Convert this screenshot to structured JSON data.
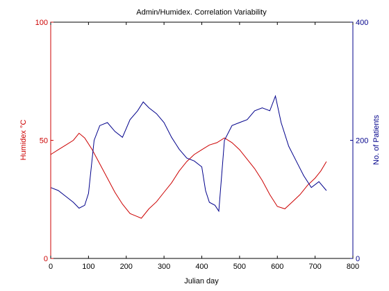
{
  "chart_data": {
    "type": "line",
    "title": "Admin/Humidex. Correlation Variability",
    "xlabel": "Julian day",
    "ylabel_left": "Humidex °C",
    "ylabel_right": "No. of Patients",
    "xlim": [
      0,
      800
    ],
    "ylim_left": [
      0,
      100
    ],
    "ylim_right": [
      0,
      400
    ],
    "xticks": [
      "0",
      "100",
      "200",
      "300",
      "400",
      "500",
      "600",
      "700",
      "800"
    ],
    "yticks_left": [
      "0",
      "50",
      "100"
    ],
    "yticks_right": [
      "0",
      "200",
      "400"
    ],
    "grid": false,
    "colors": {
      "humidex": "#cc0000",
      "patients": "#00008b",
      "axis": "#000000"
    },
    "series": [
      {
        "axis": "left",
        "color": "#cc0000",
        "x": [
          0,
          20,
          40,
          60,
          75,
          90,
          110,
          130,
          150,
          170,
          190,
          210,
          225,
          240,
          260,
          280,
          300,
          320,
          340,
          360,
          380,
          400,
          420,
          440,
          460,
          480,
          500,
          520,
          540,
          560,
          580,
          600,
          620,
          640,
          660,
          680,
          700,
          715,
          730
        ],
        "y": [
          44,
          46,
          48,
          50,
          53,
          51,
          46,
          40,
          34,
          28,
          23,
          19,
          18,
          17,
          21,
          24,
          28,
          32,
          37,
          41,
          44,
          46,
          48,
          49,
          51,
          49,
          46,
          42,
          38,
          33,
          27,
          22,
          21,
          24,
          27,
          31,
          34,
          37,
          41
        ]
      },
      {
        "axis": "right",
        "color": "#00008b",
        "x": [
          0,
          20,
          40,
          60,
          75,
          90,
          100,
          115,
          130,
          150,
          170,
          190,
          210,
          230,
          245,
          260,
          280,
          300,
          320,
          340,
          360,
          380,
          400,
          410,
          420,
          435,
          445,
          460,
          480,
          500,
          520,
          540,
          560,
          580,
          595,
          610,
          630,
          650,
          670,
          690,
          710,
          730
        ],
        "y": [
          120,
          115,
          105,
          95,
          85,
          90,
          110,
          200,
          225,
          230,
          215,
          205,
          235,
          250,
          265,
          255,
          245,
          230,
          205,
          185,
          170,
          165,
          155,
          115,
          95,
          90,
          80,
          200,
          225,
          230,
          235,
          250,
          255,
          250,
          275,
          230,
          190,
          165,
          140,
          120,
          130,
          115
        ]
      }
    ]
  }
}
